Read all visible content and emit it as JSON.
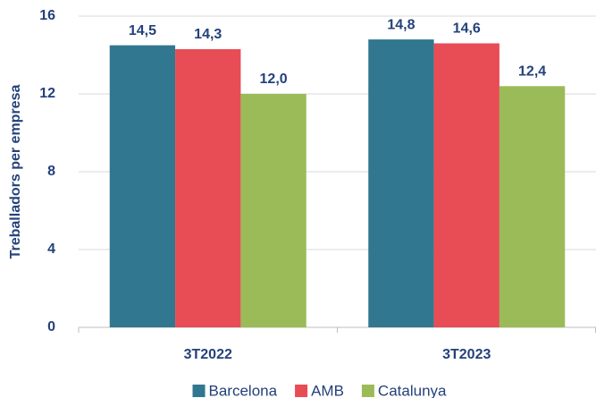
{
  "chart_data": {
    "type": "bar",
    "y_label": "Treballadors per empresa",
    "categories": [
      "3T2022",
      "3T2023"
    ],
    "series": [
      {
        "name": "Barcelona",
        "color": "#31778f",
        "values": [
          14.5,
          14.8
        ],
        "value_labels": [
          "14,5",
          "14,8"
        ]
      },
      {
        "name": "AMB",
        "color": "#e84c55",
        "values": [
          14.3,
          14.6
        ],
        "value_labels": [
          "14,3",
          "14,6"
        ]
      },
      {
        "name": "Catalunya",
        "color": "#9bbb59",
        "values": [
          12.0,
          12.4
        ],
        "value_labels": [
          "12,0",
          "12,4"
        ]
      }
    ],
    "ylim": [
      0,
      16
    ],
    "yticks": [
      0,
      4,
      8,
      12,
      16
    ],
    "grid": true,
    "legend": "bottom"
  }
}
